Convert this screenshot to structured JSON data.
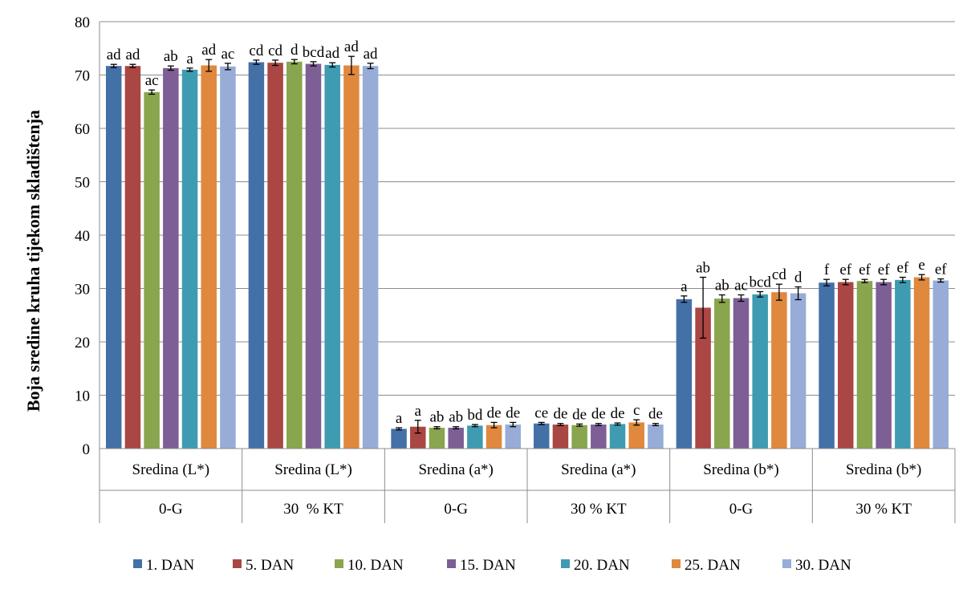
{
  "chart_data": {
    "type": "bar",
    "ylabel": "Boja sredine kruha tijekom skladištenja",
    "xlabel": "",
    "ylim": [
      0,
      80
    ],
    "yticks": [
      0,
      10,
      20,
      30,
      40,
      50,
      60,
      70,
      80
    ],
    "grid": "horizontal",
    "legend_position": "bottom",
    "categories": [
      {
        "measure": "Sredina (L*)",
        "group": "0-G"
      },
      {
        "measure": "Sredina (L*)",
        "group": "30  % KT"
      },
      {
        "measure": "Sredina (a*)",
        "group": "0-G"
      },
      {
        "measure": "Sredina (a*)",
        "group": "30 % KT"
      },
      {
        "measure": "Sredina (b*)",
        "group": "0-G"
      },
      {
        "measure": "Sredina (b*)",
        "group": "30 % KT"
      }
    ],
    "series": [
      {
        "name": "1. DAN",
        "color": "#4470A8",
        "values": [
          71.7,
          72.4,
          3.7,
          4.7,
          28.0,
          31.1
        ],
        "errors": [
          0.3,
          0.4,
          0.2,
          0.2,
          0.6,
          0.6
        ],
        "letters": [
          "ad",
          "cd",
          "a",
          "ce",
          "a",
          "f"
        ]
      },
      {
        "name": "5. DAN",
        "color": "#AA4643",
        "values": [
          71.7,
          72.3,
          4.1,
          4.5,
          26.4,
          31.2
        ],
        "errors": [
          0.3,
          0.5,
          1.2,
          0.2,
          5.7,
          0.5
        ],
        "letters": [
          "ad",
          "cd",
          "a",
          "de",
          "ab",
          "ef"
        ]
      },
      {
        "name": "10. DAN",
        "color": "#89A54E",
        "values": [
          66.8,
          72.5,
          3.9,
          4.4,
          28.1,
          31.4
        ],
        "errors": [
          0.4,
          0.4,
          0.2,
          0.2,
          0.7,
          0.3
        ],
        "letters": [
          "ac",
          "d",
          "ab",
          "de",
          "ab",
          "ef"
        ]
      },
      {
        "name": "15. DAN",
        "color": "#7D5E95",
        "values": [
          71.3,
          72.1,
          3.9,
          4.5,
          28.2,
          31.2
        ],
        "errors": [
          0.4,
          0.4,
          0.2,
          0.2,
          0.6,
          0.5
        ],
        "letters": [
          "ab",
          "bcd",
          "ab",
          "de",
          "ac",
          "ef"
        ]
      },
      {
        "name": "20. DAN",
        "color": "#3F9BB1",
        "values": [
          71.0,
          71.9,
          4.3,
          4.6,
          28.9,
          31.6
        ],
        "errors": [
          0.3,
          0.4,
          0.2,
          0.2,
          0.5,
          0.5
        ],
        "letters": [
          "a",
          "ad",
          "bd",
          "de",
          "bcd",
          "ef"
        ]
      },
      {
        "name": "25. DAN",
        "color": "#E0883E",
        "values": [
          71.8,
          71.8,
          4.4,
          4.9,
          29.3,
          32.1
        ],
        "errors": [
          1.1,
          1.7,
          0.5,
          0.5,
          1.5,
          0.5
        ],
        "letters": [
          "ad",
          "ad",
          "de",
          "c",
          "cd",
          "e"
        ]
      },
      {
        "name": "30. DAN",
        "color": "#97ACD6",
        "values": [
          71.6,
          71.7,
          4.5,
          4.5,
          29.1,
          31.5
        ],
        "errors": [
          0.6,
          0.5,
          0.4,
          0.2,
          1.2,
          0.3
        ],
        "letters": [
          "ac",
          "ad",
          "de",
          "de",
          "d",
          "ef"
        ]
      }
    ]
  }
}
